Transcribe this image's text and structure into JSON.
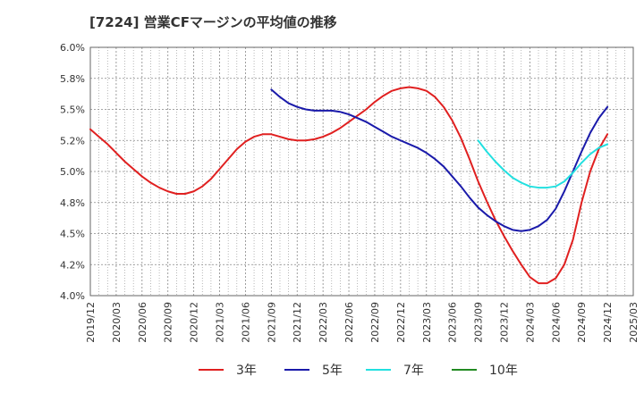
{
  "title": "[7224]  営業CFマージンの平均値の推移",
  "chart_data": {
    "type": "line",
    "title": "[7224]  営業CFマージンの平均値の推移",
    "xlabel": "",
    "ylabel": "",
    "x_ticks": [
      "2019/12",
      "2020/03",
      "2020/06",
      "2020/09",
      "2020/12",
      "2021/03",
      "2021/06",
      "2021/09",
      "2021/12",
      "2022/03",
      "2022/06",
      "2022/09",
      "2022/12",
      "2023/03",
      "2023/06",
      "2023/09",
      "2023/12",
      "2024/03",
      "2024/06",
      "2024/09",
      "2024/12",
      "2025/03"
    ],
    "y_ticks": [
      "4.0%",
      "4.2%",
      "4.5%",
      "4.8%",
      "5.0%",
      "5.2%",
      "5.5%",
      "5.8%",
      "6.0%"
    ],
    "ylim": [
      4.0,
      6.0
    ],
    "grid": true,
    "legend_position": "bottom",
    "series": [
      {
        "name": "3年",
        "color": "#e02020",
        "points": [
          [
            "2019/12",
            5.34
          ],
          [
            "2020/01",
            5.28
          ],
          [
            "2020/02",
            5.22
          ],
          [
            "2020/03",
            5.15
          ],
          [
            "2020/04",
            5.08
          ],
          [
            "2020/05",
            5.02
          ],
          [
            "2020/06",
            4.96
          ],
          [
            "2020/07",
            4.91
          ],
          [
            "2020/08",
            4.87
          ],
          [
            "2020/09",
            4.84
          ],
          [
            "2020/10",
            4.82
          ],
          [
            "2020/11",
            4.82
          ],
          [
            "2020/12",
            4.84
          ],
          [
            "2021/01",
            4.88
          ],
          [
            "2021/02",
            4.94
          ],
          [
            "2021/03",
            5.02
          ],
          [
            "2021/04",
            5.1
          ],
          [
            "2021/05",
            5.18
          ],
          [
            "2021/06",
            5.24
          ],
          [
            "2021/07",
            5.28
          ],
          [
            "2021/08",
            5.3
          ],
          [
            "2021/09",
            5.3
          ],
          [
            "2021/10",
            5.28
          ],
          [
            "2021/11",
            5.26
          ],
          [
            "2021/12",
            5.25
          ],
          [
            "2022/01",
            5.25
          ],
          [
            "2022/02",
            5.26
          ],
          [
            "2022/03",
            5.28
          ],
          [
            "2022/04",
            5.31
          ],
          [
            "2022/05",
            5.35
          ],
          [
            "2022/06",
            5.4
          ],
          [
            "2022/07",
            5.45
          ],
          [
            "2022/08",
            5.5
          ],
          [
            "2022/09",
            5.56
          ],
          [
            "2022/10",
            5.61
          ],
          [
            "2022/11",
            5.65
          ],
          [
            "2022/12",
            5.67
          ],
          [
            "2023/01",
            5.68
          ],
          [
            "2023/02",
            5.67
          ],
          [
            "2023/03",
            5.65
          ],
          [
            "2023/04",
            5.6
          ],
          [
            "2023/05",
            5.52
          ],
          [
            "2023/06",
            5.41
          ],
          [
            "2023/07",
            5.27
          ],
          [
            "2023/08",
            5.1
          ],
          [
            "2023/09",
            4.92
          ],
          [
            "2023/10",
            4.76
          ],
          [
            "2023/11",
            4.61
          ],
          [
            "2023/12",
            4.48
          ],
          [
            "2024/01",
            4.36
          ],
          [
            "2024/02",
            4.25
          ],
          [
            "2024/03",
            4.15
          ],
          [
            "2024/04",
            4.1
          ],
          [
            "2024/05",
            4.1
          ],
          [
            "2024/06",
            4.14
          ],
          [
            "2024/07",
            4.25
          ],
          [
            "2024/08",
            4.45
          ],
          [
            "2024/09",
            4.75
          ],
          [
            "2024/10",
            5.0
          ],
          [
            "2024/11",
            5.18
          ],
          [
            "2024/12",
            5.3
          ]
        ]
      },
      {
        "name": "5年",
        "color": "#1a1aaa",
        "points": [
          [
            "2021/09",
            5.66
          ],
          [
            "2021/10",
            5.6
          ],
          [
            "2021/11",
            5.55
          ],
          [
            "2021/12",
            5.52
          ],
          [
            "2022/01",
            5.5
          ],
          [
            "2022/02",
            5.49
          ],
          [
            "2022/03",
            5.49
          ],
          [
            "2022/04",
            5.49
          ],
          [
            "2022/05",
            5.48
          ],
          [
            "2022/06",
            5.46
          ],
          [
            "2022/07",
            5.43
          ],
          [
            "2022/08",
            5.4
          ],
          [
            "2022/09",
            5.36
          ],
          [
            "2022/10",
            5.32
          ],
          [
            "2022/11",
            5.28
          ],
          [
            "2022/12",
            5.25
          ],
          [
            "2023/01",
            5.22
          ],
          [
            "2023/02",
            5.19
          ],
          [
            "2023/03",
            5.15
          ],
          [
            "2023/04",
            5.1
          ],
          [
            "2023/05",
            5.04
          ],
          [
            "2023/06",
            4.96
          ],
          [
            "2023/07",
            4.88
          ],
          [
            "2023/08",
            4.79
          ],
          [
            "2023/09",
            4.71
          ],
          [
            "2023/10",
            4.65
          ],
          [
            "2023/11",
            4.6
          ],
          [
            "2023/12",
            4.56
          ],
          [
            "2024/01",
            4.53
          ],
          [
            "2024/02",
            4.52
          ],
          [
            "2024/03",
            4.53
          ],
          [
            "2024/04",
            4.56
          ],
          [
            "2024/05",
            4.61
          ],
          [
            "2024/06",
            4.7
          ],
          [
            "2024/07",
            4.84
          ],
          [
            "2024/08",
            5.0
          ],
          [
            "2024/09",
            5.16
          ],
          [
            "2024/10",
            5.31
          ],
          [
            "2024/11",
            5.43
          ],
          [
            "2024/12",
            5.52
          ]
        ]
      },
      {
        "name": "7年",
        "color": "#22e0e0",
        "points": [
          [
            "2023/09",
            5.25
          ],
          [
            "2023/10",
            5.16
          ],
          [
            "2023/11",
            5.08
          ],
          [
            "2023/12",
            5.01
          ],
          [
            "2024/01",
            4.95
          ],
          [
            "2024/02",
            4.91
          ],
          [
            "2024/03",
            4.88
          ],
          [
            "2024/04",
            4.87
          ],
          [
            "2024/05",
            4.87
          ],
          [
            "2024/06",
            4.88
          ],
          [
            "2024/07",
            4.92
          ],
          [
            "2024/08",
            4.99
          ],
          [
            "2024/09",
            5.07
          ],
          [
            "2024/10",
            5.14
          ],
          [
            "2024/11",
            5.19
          ],
          [
            "2024/12",
            5.22
          ]
        ]
      },
      {
        "name": "10年",
        "color": "#228b22",
        "points": []
      }
    ]
  }
}
